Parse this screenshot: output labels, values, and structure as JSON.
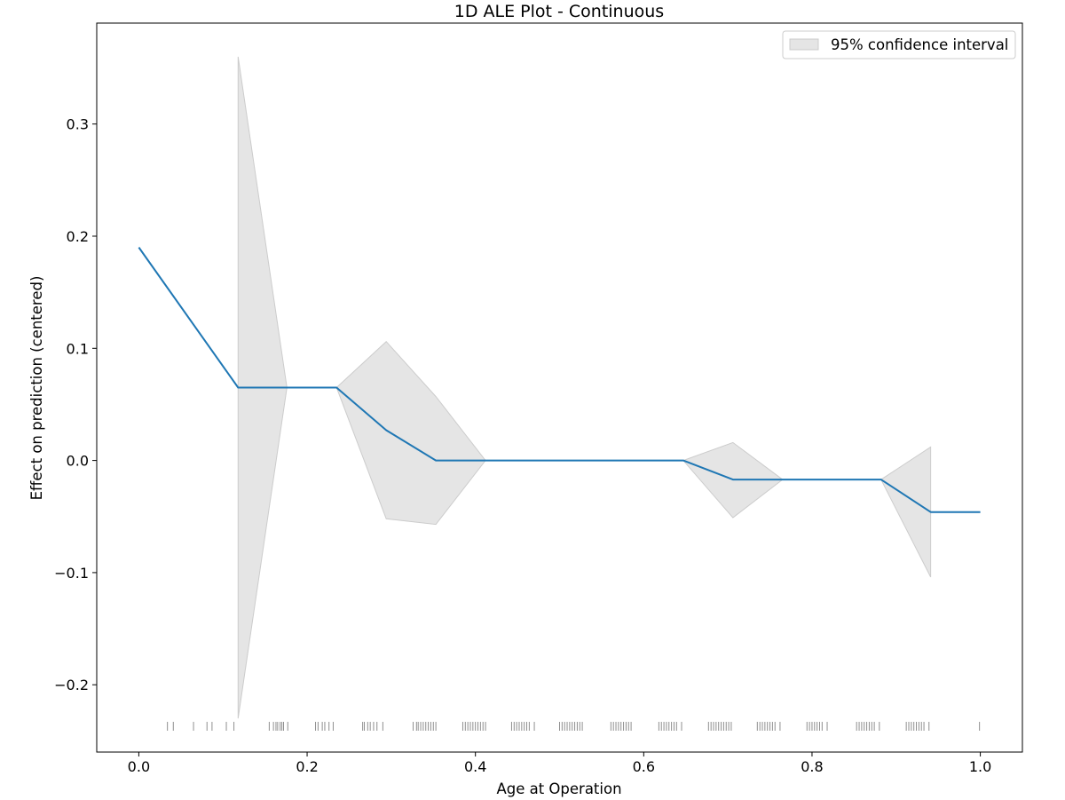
{
  "chart_data": {
    "type": "line",
    "title": "1D ALE Plot - Continuous",
    "xlabel": "Age at Operation",
    "ylabel": "Effect on prediction (centered)",
    "xlim": [
      -0.05,
      1.05
    ],
    "ylim": [
      -0.26,
      0.39
    ],
    "xticks": [
      0.0,
      0.2,
      0.4,
      0.6,
      0.8,
      1.0
    ],
    "xtick_labels": [
      "0.0",
      "0.2",
      "0.4",
      "0.6",
      "0.8",
      "1.0"
    ],
    "yticks": [
      -0.2,
      -0.1,
      0.0,
      0.1,
      0.2,
      0.3
    ],
    "ytick_labels": [
      "−0.2",
      "−0.1",
      "0.0",
      "0.1",
      "0.2",
      "0.3"
    ],
    "grid": false,
    "legend": {
      "position": "top-right",
      "entries": [
        "95% confidence interval"
      ]
    },
    "series": [
      {
        "x": [
          0.0,
          0.118,
          0.235,
          0.294,
          0.353,
          0.412,
          0.647,
          0.706,
          0.765,
          0.882,
          0.941,
          1.0
        ],
        "values": [
          0.19,
          0.065,
          0.065,
          0.027,
          0.0,
          0.0,
          0.0,
          -0.017,
          -0.017,
          -0.017,
          -0.046,
          -0.046
        ],
        "color": "#1f77b4"
      }
    ],
    "confidence_band": {
      "name": "95% confidence interval",
      "color": "#e5e5e5",
      "edge_color": "#cccccc",
      "x": [
        0.118,
        0.176,
        0.235,
        0.294,
        0.353,
        0.412,
        0.647,
        0.706,
        0.765,
        0.882,
        0.941
      ],
      "lower": [
        -0.23,
        0.065,
        0.065,
        -0.052,
        -0.057,
        0.0,
        0.0,
        -0.051,
        -0.017,
        -0.017,
        -0.104
      ],
      "upper": [
        0.36,
        0.065,
        0.065,
        0.106,
        0.057,
        0.0,
        0.0,
        0.016,
        -0.017,
        -0.017,
        0.012
      ]
    },
    "rug": {
      "y": -0.237,
      "color": "#333333",
      "x": [
        0.034,
        0.041,
        0.065,
        0.081,
        0.087,
        0.104,
        0.113,
        0.155,
        0.16,
        0.163,
        0.165,
        0.168,
        0.17,
        0.172,
        0.177,
        0.21,
        0.213,
        0.218,
        0.221,
        0.226,
        0.231,
        0.266,
        0.268,
        0.272,
        0.275,
        0.279,
        0.283,
        0.29,
        0.326,
        0.33,
        0.332,
        0.335,
        0.338,
        0.341,
        0.344,
        0.347,
        0.35,
        0.353,
        0.385,
        0.388,
        0.391,
        0.394,
        0.397,
        0.4,
        0.403,
        0.406,
        0.409,
        0.412,
        0.443,
        0.446,
        0.449,
        0.452,
        0.455,
        0.458,
        0.461,
        0.464,
        0.47,
        0.5,
        0.503,
        0.506,
        0.509,
        0.512,
        0.515,
        0.518,
        0.521,
        0.524,
        0.527,
        0.561,
        0.564,
        0.567,
        0.57,
        0.573,
        0.576,
        0.579,
        0.582,
        0.585,
        0.618,
        0.621,
        0.624,
        0.627,
        0.63,
        0.633,
        0.636,
        0.639,
        0.645,
        0.677,
        0.68,
        0.683,
        0.686,
        0.689,
        0.692,
        0.695,
        0.698,
        0.701,
        0.704,
        0.735,
        0.738,
        0.741,
        0.744,
        0.747,
        0.75,
        0.753,
        0.756,
        0.762,
        0.794,
        0.797,
        0.8,
        0.803,
        0.806,
        0.809,
        0.812,
        0.818,
        0.853,
        0.856,
        0.859,
        0.862,
        0.865,
        0.868,
        0.871,
        0.874,
        0.88,
        0.912,
        0.915,
        0.918,
        0.921,
        0.924,
        0.927,
        0.93,
        0.933,
        0.939,
        0.999
      ]
    }
  }
}
